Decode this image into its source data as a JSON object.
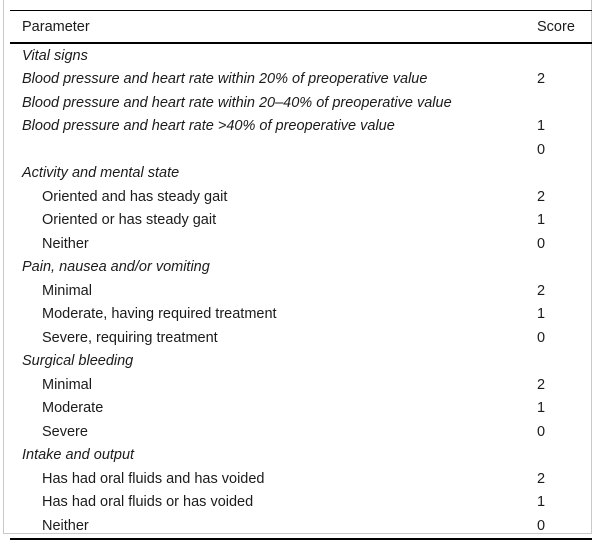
{
  "colors": {
    "background": "#ffffff",
    "text": "#1b1b1b",
    "rule": "#000000",
    "frame": "#c9c9c9"
  },
  "table": {
    "headers": {
      "parameter": "Parameter",
      "score": "Score"
    },
    "rows": [
      {
        "type": "section",
        "text": "Vital signs",
        "score": ""
      },
      {
        "type": "item-flush-italic",
        "text": "Blood pressure and heart rate within 20% of preoperative value",
        "score": "2"
      },
      {
        "type": "item-flush-italic",
        "text": "Blood pressure and heart rate within 20–40% of preoperative value",
        "score": ""
      },
      {
        "type": "item-flush-italic",
        "text": "Blood pressure and heart rate >40% of preoperative value",
        "score": "1"
      },
      {
        "type": "item-flush-italic",
        "text": "",
        "score": "0"
      },
      {
        "type": "section",
        "text": "Activity and mental state",
        "score": ""
      },
      {
        "type": "item",
        "text": "Oriented and has steady gait",
        "score": "2"
      },
      {
        "type": "item",
        "text": "Oriented or has steady gait",
        "score": "1"
      },
      {
        "type": "item",
        "text": "Neither",
        "score": "0"
      },
      {
        "type": "section",
        "text": "Pain, nausea and/or vomiting",
        "score": ""
      },
      {
        "type": "item",
        "text": "Minimal",
        "score": "2"
      },
      {
        "type": "item",
        "text": "Moderate, having required treatment",
        "score": "1"
      },
      {
        "type": "item",
        "text": "Severe, requiring treatment",
        "score": "0"
      },
      {
        "type": "section",
        "text": "Surgical bleeding",
        "score": ""
      },
      {
        "type": "item",
        "text": "Minimal",
        "score": "2"
      },
      {
        "type": "item",
        "text": "Moderate",
        "score": "1"
      },
      {
        "type": "item",
        "text": "Severe",
        "score": "0"
      },
      {
        "type": "section",
        "text": "Intake and output",
        "score": ""
      },
      {
        "type": "item",
        "text": "Has had oral fluids and has voided",
        "score": "2"
      },
      {
        "type": "item",
        "text": "Has had oral fluids or has voided",
        "score": "1"
      },
      {
        "type": "item",
        "text": "Neither",
        "score": "0"
      }
    ]
  }
}
